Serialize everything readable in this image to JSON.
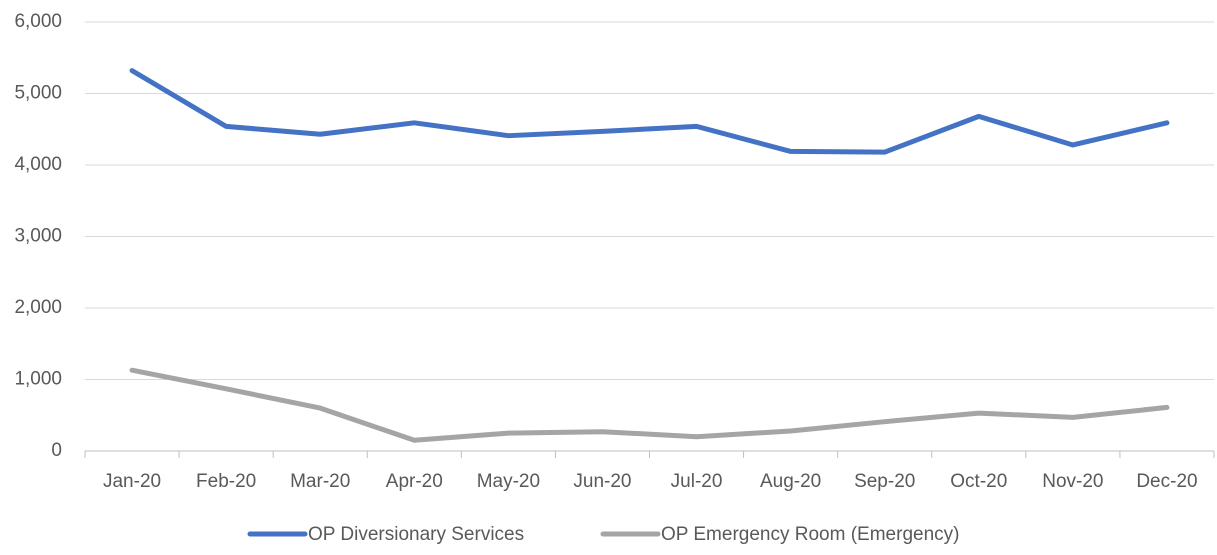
{
  "chart_data": {
    "type": "line",
    "categories": [
      "Jan-20",
      "Feb-20",
      "Mar-20",
      "Apr-20",
      "May-20",
      "Jun-20",
      "Jul-20",
      "Aug-20",
      "Sep-20",
      "Oct-20",
      "Nov-20",
      "Dec-20"
    ],
    "series": [
      {
        "name": "OP Diversionary Services",
        "color": "#4472c4",
        "values": [
          5320,
          4540,
          4430,
          4590,
          4410,
          4470,
          4540,
          4190,
          4180,
          4680,
          4280,
          4590
        ]
      },
      {
        "name": "OP Emergency Room (Emergency)",
        "color": "#a5a5a5",
        "values": [
          1130,
          870,
          600,
          150,
          250,
          270,
          200,
          280,
          410,
          530,
          470,
          610
        ]
      }
    ],
    "ylim": [
      0,
      6000
    ],
    "yticks": [
      0,
      {
        "value": 1000,
        "label": "1,000"
      },
      {
        "value": 2000,
        "label": "2,000"
      },
      {
        "value": 3000,
        "label": "3,000"
      },
      {
        "value": 4000,
        "label": "4,000"
      },
      {
        "value": 5000,
        "label": "5,000"
      },
      {
        "value": 6000,
        "label": "6,000"
      }
    ],
    "grid": true,
    "legend": "bottom"
  }
}
